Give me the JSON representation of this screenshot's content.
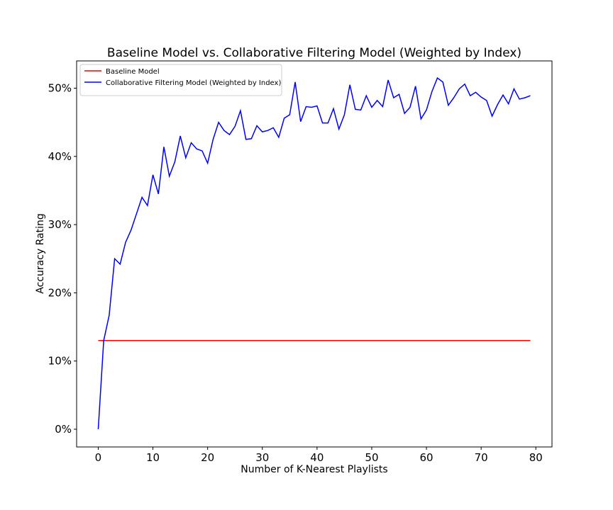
{
  "chart_data": {
    "type": "line",
    "title": "Baseline Model vs. Collaborative Filtering Model (Weighted by Index)",
    "x_label": "Number of K-Nearest Playlists",
    "y_label": "Accuracy Rating",
    "x": [
      0,
      1,
      2,
      3,
      4,
      5,
      6,
      7,
      8,
      9,
      10,
      11,
      12,
      13,
      14,
      15,
      16,
      17,
      18,
      19,
      20,
      21,
      22,
      23,
      24,
      25,
      26,
      27,
      28,
      29,
      30,
      31,
      32,
      33,
      34,
      35,
      36,
      37,
      38,
      39,
      40,
      41,
      42,
      43,
      44,
      45,
      46,
      47,
      48,
      49,
      50,
      51,
      52,
      53,
      54,
      55,
      56,
      57,
      58,
      59,
      60,
      61,
      62,
      63,
      64,
      65,
      66,
      67,
      68,
      69,
      70,
      71,
      72,
      73,
      74,
      75,
      76,
      77,
      78,
      79
    ],
    "series": [
      {
        "name": "Baseline Model",
        "color": "#ff0000",
        "values": [
          13,
          13,
          13,
          13,
          13,
          13,
          13,
          13,
          13,
          13,
          13,
          13,
          13,
          13,
          13,
          13,
          13,
          13,
          13,
          13,
          13,
          13,
          13,
          13,
          13,
          13,
          13,
          13,
          13,
          13,
          13,
          13,
          13,
          13,
          13,
          13,
          13,
          13,
          13,
          13,
          13,
          13,
          13,
          13,
          13,
          13,
          13,
          13,
          13,
          13,
          13,
          13,
          13,
          13,
          13,
          13,
          13,
          13,
          13,
          13,
          13,
          13,
          13,
          13,
          13,
          13,
          13,
          13,
          13,
          13,
          13,
          13,
          13,
          13,
          13,
          13,
          13,
          13,
          13,
          13
        ]
      },
      {
        "name": "Collaborative Filtering Model (Weighted by Index)",
        "color": "#0000ff",
        "values": [
          0,
          13.0,
          16.7,
          25.0,
          24.2,
          27.4,
          29.2,
          31.6,
          34.0,
          32.8,
          37.3,
          34.5,
          41.4,
          37.1,
          39.2,
          43.0,
          39.8,
          42.0,
          41.1,
          40.8,
          39.0,
          42.5,
          45.0,
          43.8,
          43.2,
          44.4,
          46.7,
          42.5,
          42.6,
          44.5,
          43.6,
          43.8,
          44.2,
          42.8,
          45.6,
          46.1,
          50.9,
          45.1,
          47.3,
          47.2,
          47.4,
          44.9,
          44.9,
          47.0,
          44.0,
          46.1,
          50.5,
          46.9,
          46.8,
          48.9,
          47.2,
          48.2,
          47.3,
          51.2,
          48.6,
          49.1,
          46.3,
          47.2,
          50.3,
          45.5,
          46.8,
          49.5,
          51.5,
          50.9,
          47.5,
          48.6,
          49.9,
          50.6,
          48.9,
          49.4,
          48.7,
          48.2,
          45.9,
          47.6,
          49.0,
          47.7,
          49.9,
          48.4,
          48.6,
          48.9
        ]
      }
    ],
    "xlim": [
      -3.95,
      82.95
    ],
    "ylim": [
      -2.6,
      54.0
    ],
    "xticks": [
      0,
      10,
      20,
      30,
      40,
      50,
      60,
      70,
      80
    ],
    "yticks": [
      {
        "value": 0,
        "label": "0%"
      },
      {
        "value": 10,
        "label": "10%"
      },
      {
        "value": 20,
        "label": "20%"
      },
      {
        "value": 30,
        "label": "30%"
      },
      {
        "value": 40,
        "label": "40%"
      },
      {
        "value": 50,
        "label": "50%"
      }
    ],
    "legend": "upper left"
  }
}
